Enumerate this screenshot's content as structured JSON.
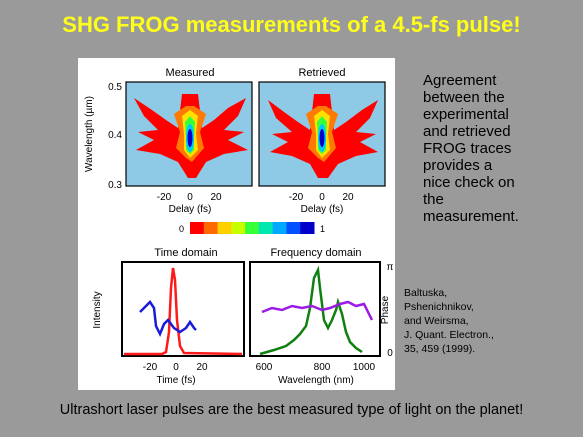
{
  "title": "SHG FROG measurements of a 4.5-fs pulse!",
  "figure": {
    "measured_label": "Measured",
    "retrieved_label": "Retrieved",
    "wavelength_axis_label": "Wavelength (µm)",
    "wavelength_ticks": [
      "0.5",
      "0.4",
      "0.3"
    ],
    "delay_axis_label": "Delay (fs)",
    "delay_ticks": [
      "-20",
      "0",
      "20"
    ],
    "colorbar_min": "0",
    "colorbar_max": "1",
    "colorbar_colors": [
      "#ff0000",
      "#ff6a00",
      "#ffd000",
      "#c8ff00",
      "#37ff3a",
      "#00e8b0",
      "#00a8ff",
      "#0050ff",
      "#0000c8"
    ],
    "time_domain": {
      "title": "Time domain",
      "ylabel": "Intensity",
      "xlabel": "Time (fs)",
      "ticks": [
        "-20",
        "0",
        "20"
      ]
    },
    "frequency_domain": {
      "title": "Frequency domain",
      "ylabel": "Phase",
      "xlabel": "Wavelength (nm)",
      "ticks": [
        "600",
        "800",
        "1000"
      ],
      "phase_top": "π",
      "phase_bottom": "0"
    },
    "colors": {
      "intensity": "#ff1a1a",
      "phase_time": "#1a1ad9",
      "spectrum": "#108010",
      "phase_freq": "#9a1ae6",
      "trace_background": "#8ecae6"
    }
  },
  "side_text": [
    "Agreement",
    "between the",
    "experimental",
    "and retrieved",
    "FROG traces",
    "provides a",
    "nice check on",
    "the",
    "measurement."
  ],
  "reference": [
    "Baltuska,",
    "Pshenichnikov,",
    "and Weirsma,",
    "J. Quant. Electron.,",
    "35, 459 (1999)."
  ],
  "bottom_text": "Ultrashort laser pulses are the best measured type of light on the planet!"
}
